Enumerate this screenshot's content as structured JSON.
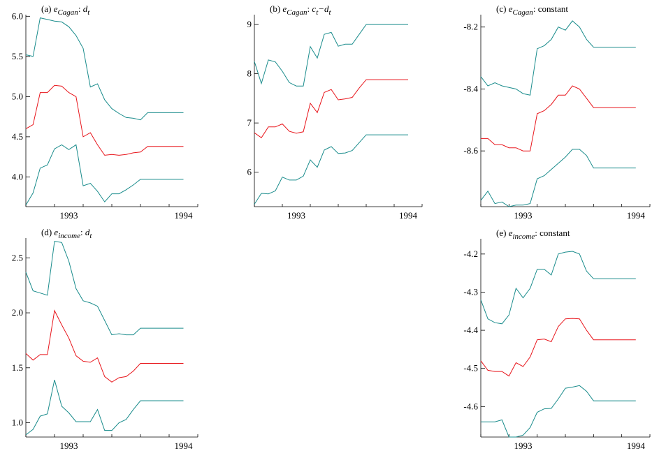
{
  "colors": {
    "band": "#1a8c8c",
    "estimate": "#e8151b",
    "axis": "#000000"
  },
  "chart_data": [
    {
      "type": "line",
      "panel": "(a)",
      "title_parts": {
        "prefix": "(a) ",
        "var": "e",
        "sub": "Cagan",
        "mid": ": ",
        "body": "d",
        "body_sub": "t",
        "suffix": ""
      },
      "ylim": [
        3.63,
        6.02
      ],
      "yticks": [
        4.0,
        4.5,
        5.0,
        5.5,
        6.0
      ],
      "ytick_labels": [
        "4.0",
        "4.5",
        "5.0",
        "5.5",
        "6.0"
      ],
      "xlim": [
        1992.625,
        1994.125
      ],
      "xticks": [
        1993,
        1994
      ],
      "xtick_labels": [
        "1993",
        "1994"
      ],
      "x": [
        1992.625,
        1992.6875,
        1992.75,
        1992.8125,
        1992.875,
        1992.9375,
        1993.0,
        1993.0625,
        1993.125,
        1993.1875,
        1993.25,
        1993.3125,
        1993.375,
        1993.4375,
        1993.5,
        1993.5625,
        1993.625,
        1993.6875,
        1993.75,
        1993.8125,
        1993.875,
        1993.9375,
        1994.0
      ],
      "series": [
        {
          "role": "upper",
          "values": [
            5.52,
            5.5,
            5.98,
            5.96,
            5.94,
            5.93,
            5.87,
            5.76,
            5.6,
            5.12,
            5.16,
            4.96,
            4.85,
            4.79,
            4.74,
            4.73,
            4.71,
            4.8,
            4.8,
            4.8,
            4.8,
            4.8,
            4.8
          ]
        },
        {
          "role": "estimate",
          "values": [
            4.6,
            4.65,
            5.05,
            5.05,
            5.14,
            5.13,
            5.05,
            5.0,
            4.5,
            4.55,
            4.4,
            4.27,
            4.28,
            4.27,
            4.28,
            4.3,
            4.31,
            4.38,
            4.38,
            4.38,
            4.38,
            4.38,
            4.38
          ]
        },
        {
          "role": "lower",
          "values": [
            3.65,
            3.8,
            4.11,
            4.15,
            4.35,
            4.4,
            4.34,
            4.4,
            3.89,
            3.92,
            3.82,
            3.69,
            3.79,
            3.79,
            3.84,
            3.9,
            3.97,
            3.97,
            3.97,
            3.97,
            3.97,
            3.97,
            3.97
          ]
        }
      ]
    },
    {
      "type": "line",
      "panel": "(b)",
      "title_parts": {
        "prefix": "(b) ",
        "var": "e",
        "sub": "Cagan",
        "mid": ": ",
        "body": "c",
        "body_sub": "t",
        "suffix": "−d",
        "suffix_sub": "t"
      },
      "ylim": [
        5.3,
        9.2
      ],
      "yticks": [
        6,
        7,
        8,
        9
      ],
      "ytick_labels": [
        "6",
        "7",
        "8",
        "9"
      ],
      "xlim": [
        1992.625,
        1994.125
      ],
      "xticks": [
        1993,
        1994
      ],
      "xtick_labels": [
        "1993",
        "1994"
      ],
      "x": [
        1992.625,
        1992.6875,
        1992.75,
        1992.8125,
        1992.875,
        1992.9375,
        1993.0,
        1993.0625,
        1993.125,
        1993.1875,
        1993.25,
        1993.3125,
        1993.375,
        1993.4375,
        1993.5,
        1993.5625,
        1993.625,
        1993.6875,
        1993.75,
        1993.8125,
        1993.875,
        1993.9375,
        1994.0
      ],
      "series": [
        {
          "role": "upper",
          "values": [
            8.25,
            7.8,
            8.28,
            8.24,
            8.05,
            7.82,
            7.75,
            7.75,
            8.55,
            8.32,
            8.8,
            8.84,
            8.56,
            8.6,
            8.6,
            8.8,
            9.0,
            9.0,
            9.0,
            9.0,
            9.0,
            9.0,
            9.0
          ]
        },
        {
          "role": "estimate",
          "values": [
            6.8,
            6.7,
            6.92,
            6.92,
            6.98,
            6.83,
            6.79,
            6.82,
            7.4,
            7.21,
            7.62,
            7.68,
            7.47,
            7.49,
            7.52,
            7.71,
            7.88,
            7.88,
            7.88,
            7.88,
            7.88,
            7.88,
            7.88
          ]
        },
        {
          "role": "lower",
          "values": [
            5.35,
            5.57,
            5.56,
            5.62,
            5.9,
            5.84,
            5.84,
            5.92,
            6.25,
            6.1,
            6.45,
            6.52,
            6.38,
            6.39,
            6.44,
            6.6,
            6.76,
            6.76,
            6.76,
            6.76,
            6.76,
            6.76,
            6.76
          ]
        }
      ]
    },
    {
      "type": "line",
      "panel": "(c)",
      "title_parts": {
        "prefix": "(c) ",
        "var": "e",
        "sub": "Cagan",
        "mid": ": ",
        "body": "",
        "body_sub": "",
        "suffix": "constant"
      },
      "ylim": [
        -8.78,
        -8.16
      ],
      "yticks": [
        -8.6,
        -8.4,
        -8.2
      ],
      "ytick_labels": [
        "-8.6",
        "-8.4",
        "-8.2"
      ],
      "xlim": [
        1992.625,
        1994.125
      ],
      "xticks": [
        1993,
        1994
      ],
      "xtick_labels": [
        "1993",
        "1994"
      ],
      "x": [
        1992.625,
        1992.6875,
        1992.75,
        1992.8125,
        1992.875,
        1992.9375,
        1993.0,
        1993.0625,
        1993.125,
        1993.1875,
        1993.25,
        1993.3125,
        1993.375,
        1993.4375,
        1993.5,
        1993.5625,
        1993.625,
        1993.6875,
        1993.75,
        1993.8125,
        1993.875,
        1993.9375,
        1994.0
      ],
      "series": [
        {
          "role": "upper",
          "values": [
            -8.36,
            -8.39,
            -8.38,
            -8.39,
            -8.395,
            -8.4,
            -8.415,
            -8.42,
            -8.27,
            -8.26,
            -8.24,
            -8.2,
            -8.21,
            -8.18,
            -8.2,
            -8.24,
            -8.265,
            -8.265,
            -8.265,
            -8.265,
            -8.265,
            -8.265,
            -8.265
          ]
        },
        {
          "role": "estimate",
          "values": [
            -8.56,
            -8.56,
            -8.58,
            -8.58,
            -8.59,
            -8.59,
            -8.6,
            -8.6,
            -8.48,
            -8.47,
            -8.45,
            -8.42,
            -8.42,
            -8.39,
            -8.4,
            -8.43,
            -8.46,
            -8.46,
            -8.46,
            -8.46,
            -8.46,
            -8.46,
            -8.46
          ]
        },
        {
          "role": "lower",
          "values": [
            -8.76,
            -8.73,
            -8.77,
            -8.765,
            -8.78,
            -8.775,
            -8.775,
            -8.77,
            -8.69,
            -8.68,
            -8.66,
            -8.64,
            -8.62,
            -8.595,
            -8.595,
            -8.615,
            -8.655,
            -8.655,
            -8.655,
            -8.655,
            -8.655,
            -8.655,
            -8.655
          ]
        }
      ]
    },
    {
      "type": "line",
      "panel": "(d)",
      "title_parts": {
        "prefix": "(d) ",
        "var": "e",
        "sub": "income",
        "mid": ": ",
        "body": "d",
        "body_sub": "t",
        "suffix": ""
      },
      "ylim": [
        0.87,
        2.68
      ],
      "yticks": [
        1.0,
        1.5,
        2.0,
        2.5
      ],
      "ytick_labels": [
        "1.0",
        "1.5",
        "2.0",
        "2.5"
      ],
      "xlim": [
        1992.625,
        1994.125
      ],
      "xticks": [
        1993,
        1994
      ],
      "xtick_labels": [
        "1993",
        "1994"
      ],
      "x": [
        1992.625,
        1992.6875,
        1992.75,
        1992.8125,
        1992.875,
        1992.9375,
        1993.0,
        1993.0625,
        1993.125,
        1993.1875,
        1993.25,
        1993.3125,
        1993.375,
        1993.4375,
        1993.5,
        1993.5625,
        1993.625,
        1993.6875,
        1993.75,
        1993.8125,
        1993.875,
        1993.9375,
        1994.0
      ],
      "series": [
        {
          "role": "upper",
          "values": [
            2.37,
            2.2,
            2.18,
            2.16,
            2.65,
            2.64,
            2.47,
            2.22,
            2.11,
            2.09,
            2.06,
            1.93,
            1.8,
            1.81,
            1.8,
            1.8,
            1.86,
            1.86,
            1.86,
            1.86,
            1.86,
            1.86,
            1.86
          ]
        },
        {
          "role": "estimate",
          "values": [
            1.63,
            1.57,
            1.62,
            1.62,
            2.02,
            1.89,
            1.77,
            1.61,
            1.56,
            1.55,
            1.59,
            1.42,
            1.37,
            1.41,
            1.42,
            1.47,
            1.54,
            1.54,
            1.54,
            1.54,
            1.54,
            1.54,
            1.54
          ]
        },
        {
          "role": "lower",
          "values": [
            0.89,
            0.94,
            1.06,
            1.08,
            1.39,
            1.15,
            1.09,
            1.01,
            1.01,
            1.01,
            1.12,
            0.93,
            0.93,
            1.0,
            1.03,
            1.12,
            1.2,
            1.2,
            1.2,
            1.2,
            1.2,
            1.2,
            1.2
          ]
        }
      ]
    },
    {
      "type": "line",
      "panel": "(e)",
      "title_parts": {
        "prefix": "(e) ",
        "var": "e",
        "sub": "income",
        "mid": ": ",
        "body": "",
        "body_sub": "",
        "suffix": "constant"
      },
      "ylim": [
        -4.68,
        -4.16
      ],
      "yticks": [
        -4.6,
        -4.5,
        -4.4,
        -4.3,
        -4.2
      ],
      "ytick_labels": [
        "-4.6",
        "-4.5",
        "-4.4",
        "-4.3",
        "-4.2"
      ],
      "xlim": [
        1992.625,
        1994.125
      ],
      "xticks": [
        1993,
        1994
      ],
      "xtick_labels": [
        "1993",
        "1994"
      ],
      "x": [
        1992.625,
        1992.6875,
        1992.75,
        1992.8125,
        1992.875,
        1992.9375,
        1993.0,
        1993.0625,
        1993.125,
        1993.1875,
        1993.25,
        1993.3125,
        1993.375,
        1993.4375,
        1993.5,
        1993.5625,
        1993.625,
        1993.6875,
        1993.75,
        1993.8125,
        1993.875,
        1993.9375,
        1994.0
      ],
      "series": [
        {
          "role": "upper",
          "values": [
            -4.32,
            -4.37,
            -4.38,
            -4.383,
            -4.36,
            -4.29,
            -4.315,
            -4.29,
            -4.24,
            -4.24,
            -4.255,
            -4.2,
            -4.195,
            -4.193,
            -4.2,
            -4.245,
            -4.265,
            -4.265,
            -4.265,
            -4.265,
            -4.265,
            -4.265,
            -4.265
          ]
        },
        {
          "role": "estimate",
          "values": [
            -4.48,
            -4.505,
            -4.508,
            -4.508,
            -4.52,
            -4.485,
            -4.495,
            -4.47,
            -4.425,
            -4.423,
            -4.43,
            -4.39,
            -4.37,
            -4.369,
            -4.37,
            -4.4,
            -4.425,
            -4.425,
            -4.425,
            -4.425,
            -4.425,
            -4.425,
            -4.425
          ]
        },
        {
          "role": "lower",
          "values": [
            -4.64,
            -4.64,
            -4.64,
            -4.635,
            -4.68,
            -4.68,
            -4.675,
            -4.655,
            -4.615,
            -4.606,
            -4.605,
            -4.58,
            -4.552,
            -4.549,
            -4.545,
            -4.56,
            -4.585,
            -4.585,
            -4.585,
            -4.585,
            -4.585,
            -4.585,
            -4.585
          ]
        }
      ]
    }
  ]
}
